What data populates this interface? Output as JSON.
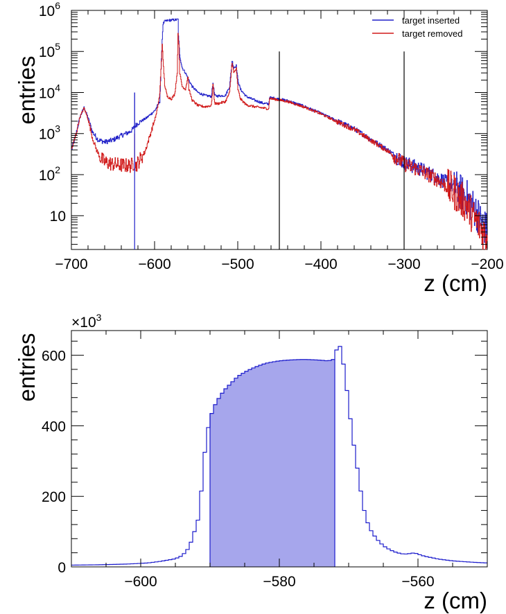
{
  "chart_data": [
    {
      "type": "line",
      "xlabel": "z (cm)",
      "ylabel": "entries",
      "xlim": [
        -700,
        -200
      ],
      "ylim": [
        1.5,
        1000000
      ],
      "yscale": "log",
      "x_ticks": [
        -700,
        -600,
        -500,
        -400,
        -300,
        -200
      ],
      "x_tick_labels": [
        "−700",
        "−600",
        "−500",
        "−400",
        "−300",
        "−200"
      ],
      "y_ticks": [
        10,
        100,
        1000,
        10000,
        100000,
        1000000
      ],
      "y_tick_labels": [
        {
          "base": "10",
          "exp": ""
        },
        {
          "base": "10",
          "exp": "2"
        },
        {
          "base": "10",
          "exp": "3"
        },
        {
          "base": "10",
          "exp": "4"
        },
        {
          "base": "10",
          "exp": "5"
        },
        {
          "base": "10",
          "exp": "6"
        }
      ],
      "legend": {
        "placement": "top-right"
      },
      "colors": {
        "target_inserted": "#1f1fc8",
        "target_removed": "#d01818"
      },
      "series": [
        {
          "name": "target inserted",
          "color": "#1f1fc8",
          "points": [
            [
              -700,
              400
            ],
            [
              -695,
              900
            ],
            [
              -690,
              2500
            ],
            [
              -685,
              4300
            ],
            [
              -680,
              2400
            ],
            [
              -675,
              1100
            ],
            [
              -668,
              700
            ],
            [
              -660,
              620
            ],
            [
              -650,
              700
            ],
            [
              -640,
              900
            ],
            [
              -630,
              1100
            ],
            [
              -626,
              1300
            ],
            [
              -624,
              1500
            ],
            [
              -624,
              10000
            ],
            [
              -624,
              1500
            ],
            [
              -620,
              1800
            ],
            [
              -610,
              2400
            ],
            [
              -600,
              3600
            ],
            [
              -594,
              6000
            ],
            [
              -591,
              200000
            ],
            [
              -590,
              470000
            ],
            [
              -588,
              540000
            ],
            [
              -584,
              570000
            ],
            [
              -578,
              585000
            ],
            [
              -574,
              590000
            ],
            [
              -572,
              600000
            ],
            [
              -571.5,
              250000
            ],
            [
              -570,
              80000
            ],
            [
              -567,
              40000
            ],
            [
              -563,
              30000
            ],
            [
              -560,
              22000
            ],
            [
              -555,
              14000
            ],
            [
              -548,
              10000
            ],
            [
              -540,
              8500
            ],
            [
              -532,
              8000
            ],
            [
              -530,
              17000
            ],
            [
              -528,
              8500
            ],
            [
              -525,
              8200
            ],
            [
              -515,
              8500
            ],
            [
              -510,
              14000
            ],
            [
              -507,
              60000
            ],
            [
              -505,
              40000
            ],
            [
              -502,
              45000
            ],
            [
              -500,
              20000
            ],
            [
              -497,
              12000
            ],
            [
              -490,
              8000
            ],
            [
              -480,
              6500
            ],
            [
              -470,
              5500
            ],
            [
              -463,
              5200
            ],
            [
              -462,
              7500
            ],
            [
              -455,
              7200
            ],
            [
              -440,
              6300
            ],
            [
              -420,
              4600
            ],
            [
              -400,
              3100
            ],
            [
              -380,
              2000
            ],
            [
              -360,
              1300
            ],
            [
              -340,
              720
            ],
            [
              -320,
              400
            ],
            [
              -300,
              195
            ],
            [
              -280,
              135
            ],
            [
              -260,
              85
            ],
            [
              -240,
              50
            ],
            [
              -225,
              28
            ],
            [
              -215,
              14
            ],
            [
              -205,
              6
            ],
            [
              -200,
              4
            ]
          ]
        },
        {
          "name": "target removed",
          "color": "#d01818",
          "points": [
            [
              -700,
              400
            ],
            [
              -695,
              900
            ],
            [
              -690,
              2500
            ],
            [
              -685,
              4200
            ],
            [
              -680,
              2200
            ],
            [
              -675,
              800
            ],
            [
              -670,
              400
            ],
            [
              -665,
              250
            ],
            [
              -660,
              200
            ],
            [
              -650,
              180
            ],
            [
              -640,
              170
            ],
            [
              -630,
              165
            ],
            [
              -626,
              180
            ],
            [
              -624,
              200
            ],
            [
              -624,
              1000
            ],
            [
              -624,
              150
            ],
            [
              -620,
              200
            ],
            [
              -612,
              350
            ],
            [
              -605,
              1000
            ],
            [
              -598,
              3000
            ],
            [
              -594,
              9000
            ],
            [
              -592,
              60000
            ],
            [
              -591,
              160000
            ],
            [
              -590,
              60000
            ],
            [
              -588,
              15000
            ],
            [
              -585,
              8000
            ],
            [
              -580,
              7000
            ],
            [
              -576,
              9000
            ],
            [
              -573,
              30000
            ],
            [
              -572,
              260000
            ],
            [
              -571,
              150000
            ],
            [
              -570,
              30000
            ],
            [
              -567,
              14000
            ],
            [
              -563,
              12000
            ],
            [
              -560,
              25000
            ],
            [
              -559,
              12000
            ],
            [
              -555,
              6500
            ],
            [
              -548,
              4800
            ],
            [
              -540,
              4500
            ],
            [
              -532,
              4800
            ],
            [
              -530,
              16000
            ],
            [
              -528,
              5500
            ],
            [
              -525,
              5300
            ],
            [
              -515,
              6000
            ],
            [
              -510,
              10000
            ],
            [
              -507,
              55000
            ],
            [
              -505,
              30000
            ],
            [
              -502,
              38000
            ],
            [
              -500,
              12000
            ],
            [
              -497,
              7000
            ],
            [
              -490,
              5000
            ],
            [
              -480,
              4500
            ],
            [
              -470,
              4200
            ],
            [
              -463,
              4000
            ],
            [
              -462,
              7200
            ],
            [
              -455,
              6800
            ],
            [
              -440,
              6000
            ],
            [
              -420,
              4400
            ],
            [
              -400,
              3000
            ],
            [
              -380,
              1900
            ],
            [
              -360,
              1250
            ],
            [
              -340,
              680
            ],
            [
              -320,
              380
            ],
            [
              -300,
              180
            ],
            [
              -280,
              125
            ],
            [
              -260,
              75
            ],
            [
              -240,
              38
            ],
            [
              -225,
              18
            ],
            [
              -215,
              8
            ],
            [
              -205,
              4
            ],
            [
              -200,
              3
            ]
          ]
        }
      ],
      "markers": [
        -624,
        -450,
        -300
      ],
      "marker_heights": [
        10000,
        100000,
        100000
      ]
    },
    {
      "type": "bar",
      "xlabel": "z (cm)",
      "ylabel": "entries",
      "y_multiplier": {
        "base": "×10",
        "exp": "3"
      },
      "xlim": [
        -610,
        -550
      ],
      "ylim": [
        0,
        670
      ],
      "x_ticks": [
        -600,
        -580,
        -560
      ],
      "x_tick_labels": [
        "−600",
        "−580",
        "−560"
      ],
      "y_ticks": [
        0,
        200,
        400,
        600
      ],
      "y_tick_labels": [
        "0",
        "200",
        "400",
        "600"
      ],
      "colors": {
        "line": "#1a1acc",
        "fill": "#a6a6ec"
      },
      "bin_width": 0.5,
      "shaded_range": [
        -590,
        -572
      ],
      "profile": [
        [
          -610,
          5
        ],
        [
          -606,
          6
        ],
        [
          -602,
          8
        ],
        [
          -599,
          11
        ],
        [
          -597,
          16
        ],
        [
          -595,
          23
        ],
        [
          -594,
          32
        ],
        [
          -593,
          55
        ],
        [
          -592.5,
          85
        ],
        [
          -592,
          115
        ],
        [
          -591.5,
          150
        ],
        [
          -591,
          280
        ],
        [
          -590.5,
          370
        ],
        [
          -590,
          420
        ],
        [
          -589.5,
          450
        ],
        [
          -589,
          470
        ],
        [
          -588,
          500
        ],
        [
          -587,
          520
        ],
        [
          -586,
          540
        ],
        [
          -585,
          552
        ],
        [
          -584,
          562
        ],
        [
          -583,
          570
        ],
        [
          -582,
          577
        ],
        [
          -581,
          581
        ],
        [
          -580,
          584
        ],
        [
          -579,
          586
        ],
        [
          -578,
          587
        ],
        [
          -577,
          588
        ],
        [
          -576,
          588
        ],
        [
          -575,
          587
        ],
        [
          -574,
          586
        ],
        [
          -573,
          584
        ],
        [
          -572.5,
          586
        ],
        [
          -572,
          590
        ],
        [
          -571.5,
          640
        ],
        [
          -571,
          610
        ],
        [
          -570.5,
          540
        ],
        [
          -570,
          460
        ],
        [
          -569.5,
          380
        ],
        [
          -569,
          310
        ],
        [
          -568.5,
          250
        ],
        [
          -568,
          180
        ],
        [
          -567.5,
          140
        ],
        [
          -567,
          110
        ],
        [
          -566,
          80
        ],
        [
          -565,
          60
        ],
        [
          -564,
          48
        ],
        [
          -563,
          40
        ],
        [
          -562,
          36
        ],
        [
          -561,
          38
        ],
        [
          -560.5,
          40
        ],
        [
          -560,
          36
        ],
        [
          -559,
          30
        ],
        [
          -557,
          22
        ],
        [
          -555,
          17
        ],
        [
          -552,
          13
        ],
        [
          -550,
          11
        ]
      ]
    }
  ]
}
